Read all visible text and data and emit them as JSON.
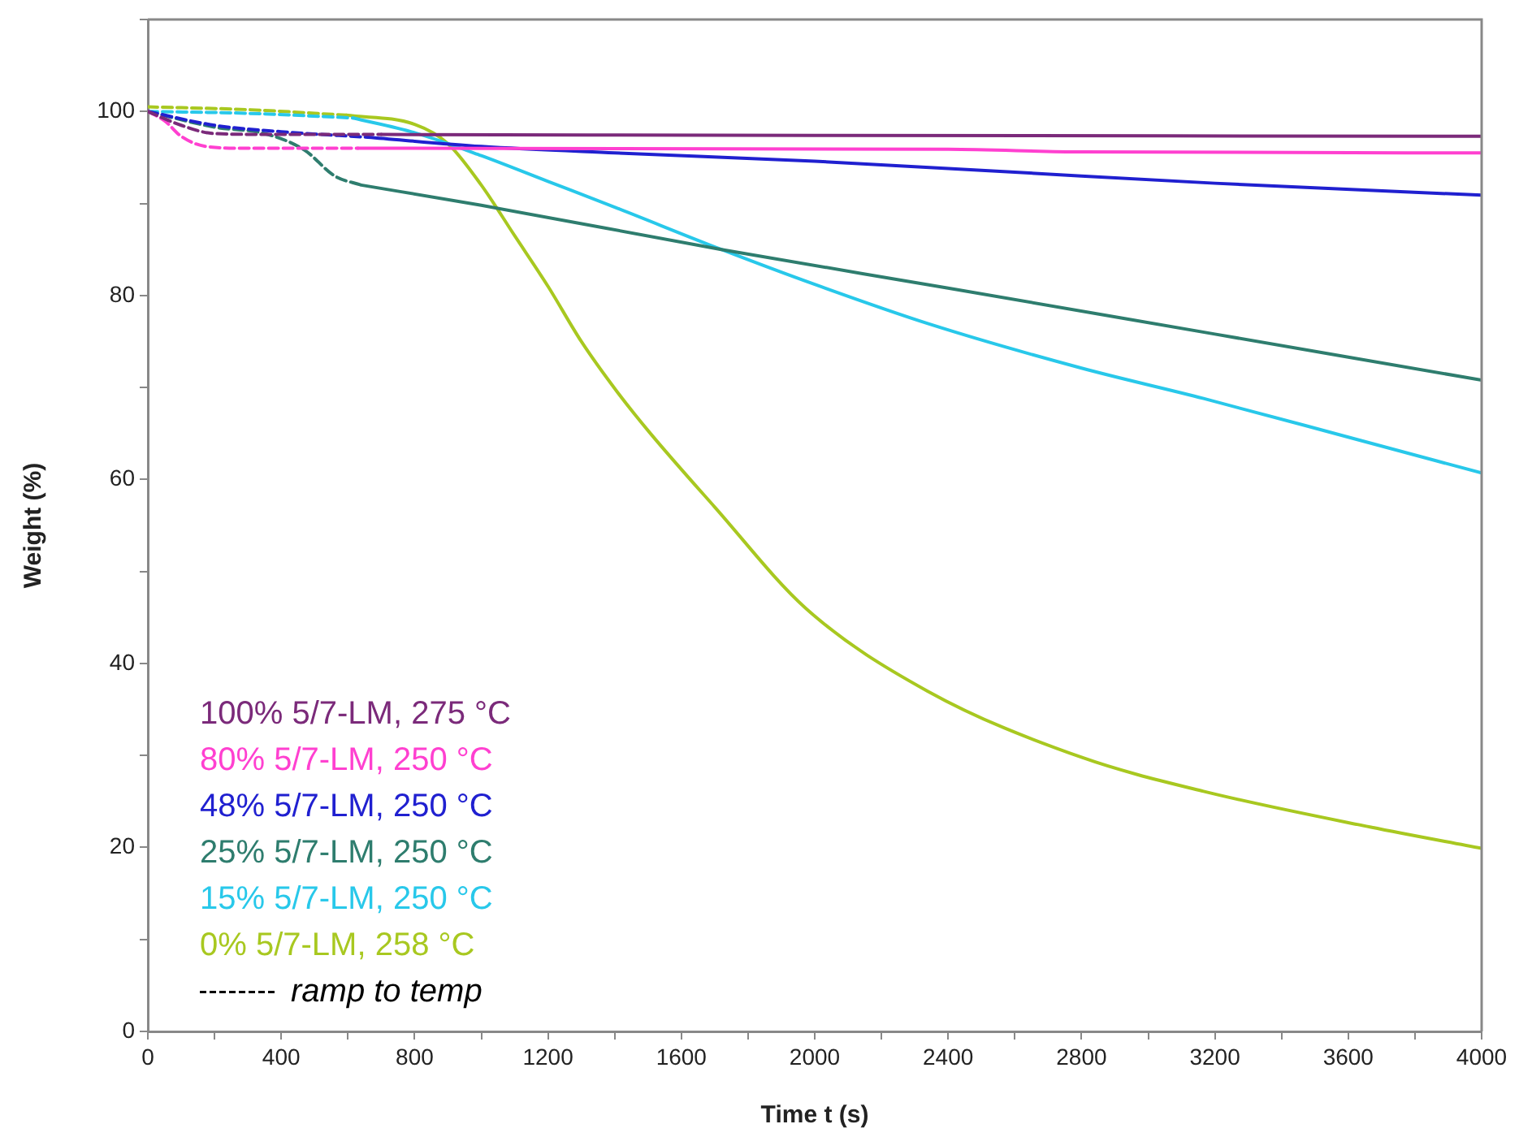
{
  "chart_data": {
    "type": "line",
    "xlabel": "Time t (s)",
    "ylabel": "Weight (%)",
    "grid": false,
    "legend": "bottom left",
    "marker": "none",
    "xlim": [
      0,
      4000
    ],
    "ylim": [
      0,
      110
    ],
    "xticks": [
      0,
      {
        "value": 200,
        "label": null
      },
      400,
      {
        "value": 600,
        "label": null
      },
      800,
      {
        "value": 1000,
        "label": null
      },
      1200,
      {
        "value": 1400,
        "label": null
      },
      1600,
      {
        "value": 1800,
        "label": null
      },
      2000,
      {
        "value": 2200,
        "label": null
      },
      2400,
      {
        "value": 2600,
        "label": null
      },
      2800,
      {
        "value": 3000,
        "label": null
      },
      3200,
      {
        "value": 3400,
        "label": null
      },
      3600,
      {
        "value": 3800,
        "label": null
      },
      4000
    ],
    "yticks": [
      0,
      {
        "value": 10,
        "label": null
      },
      20,
      {
        "value": 30,
        "label": null
      },
      40,
      {
        "value": 50,
        "label": null
      },
      60,
      {
        "value": 70,
        "label": null
      },
      80,
      {
        "value": 90,
        "label": null
      },
      100,
      {
        "value": 110,
        "label": null
      }
    ],
    "series": [
      {
        "color": "#7b2a7a",
        "line_style": "dashed",
        "x": [
          0,
          100,
          200,
          400,
          700
        ],
        "values": [
          100,
          98.5,
          97.6,
          97.5,
          97.5
        ]
      },
      {
        "name": "100% 5/7-LM, 275 °C",
        "color": "#7b2a7a",
        "line_style": "solid",
        "x": [
          700,
          2000,
          4000
        ],
        "values": [
          97.5,
          97.4,
          97.3
        ]
      },
      {
        "color": "#ff40d0",
        "line_style": "dashed",
        "x": [
          0,
          50,
          100,
          175,
          300,
          630
        ],
        "values": [
          100,
          99,
          97.3,
          96.2,
          96.0,
          96.0
        ]
      },
      {
        "name": "80% 5/7-LM, 250 °C",
        "color": "#ff40d0",
        "line_style": "solid",
        "x": [
          630,
          2400,
          2800,
          4000
        ],
        "values": [
          96.0,
          95.9,
          95.6,
          95.5
        ]
      },
      {
        "color": "#2020d0",
        "line_style": "dashed",
        "x": [
          0,
          200,
          400,
          660
        ],
        "values": [
          100,
          98.5,
          97.8,
          97.2
        ]
      },
      {
        "name": "48% 5/7-LM, 250 °C",
        "color": "#2020d0",
        "line_style": "solid",
        "x": [
          660,
          1000,
          1400,
          2000,
          2600,
          3200,
          4000
        ],
        "values": [
          97.2,
          96.2,
          95.5,
          94.6,
          93.4,
          92.2,
          90.9
        ]
      },
      {
        "color": "#2e7d6e",
        "line_style": "dashed",
        "x": [
          0,
          200,
          350,
          470,
          560,
          640
        ],
        "values": [
          100,
          98.3,
          97.6,
          95.8,
          93,
          92.0
        ]
      },
      {
        "name": "25% 5/7-LM, 250 °C",
        "color": "#2e7d6e",
        "line_style": "solid",
        "x": [
          640,
          1000,
          1720,
          2400,
          3200,
          4000
        ],
        "values": [
          92.0,
          89.8,
          85.0,
          80.8,
          75.8,
          70.8
        ]
      },
      {
        "color": "#28c8ea",
        "line_style": "dashed",
        "x": [
          0,
          300,
          615
        ],
        "values": [
          100,
          99.8,
          99.3
        ]
      },
      {
        "name": "15% 5/7-LM, 250 °C",
        "color": "#28c8ea",
        "line_style": "solid",
        "x": [
          615,
          800,
          1000,
          1200,
          1400,
          1720,
          2000,
          2343,
          2800,
          3166,
          3600,
          4000
        ],
        "values": [
          99.3,
          97.7,
          95.2,
          92.4,
          89.6,
          85.0,
          81.2,
          76.9,
          72.1,
          68.8,
          64.6,
          60.7
        ]
      },
      {
        "color": "#a8c820",
        "line_style": "dashed",
        "x": [
          0,
          300,
          595
        ],
        "values": [
          100.5,
          100.2,
          99.6
        ]
      },
      {
        "name": "0% 5/7-LM, 258 °C",
        "color": "#a8c820",
        "line_style": "solid",
        "x": [
          595,
          800,
          900,
          1000,
          1100,
          1200,
          1300,
          1408,
          1505,
          1700,
          1973,
          2338,
          2800,
          3166,
          3668,
          4000
        ],
        "values": [
          99.6,
          98.6,
          96.5,
          92.0,
          86.5,
          81,
          75,
          69.5,
          65.1,
          57,
          46,
          37,
          29.8,
          26.1,
          22.2,
          19.9
        ]
      },
      {
        "name": "ramp to temp",
        "color": "#000000",
        "line_style": "dashed"
      }
    ]
  }
}
